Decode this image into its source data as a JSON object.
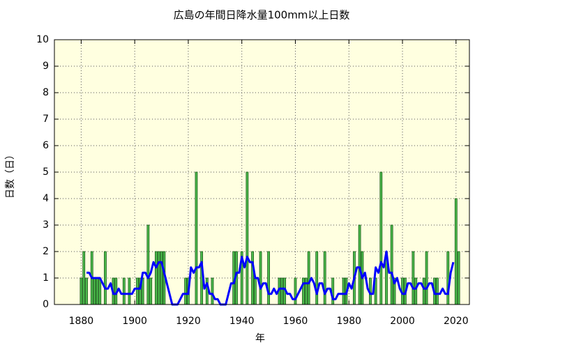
{
  "chart_data": {
    "type": "bar_line",
    "title": "広島の年間日降水量100mm以上日数",
    "xlabel": "年",
    "ylabel": "日数（日）",
    "x": [
      1880,
      1881,
      1882,
      1883,
      1884,
      1885,
      1886,
      1887,
      1888,
      1889,
      1890,
      1891,
      1892,
      1893,
      1894,
      1895,
      1896,
      1897,
      1898,
      1899,
      1900,
      1901,
      1902,
      1903,
      1904,
      1905,
      1906,
      1907,
      1908,
      1909,
      1910,
      1911,
      1912,
      1913,
      1914,
      1915,
      1916,
      1917,
      1918,
      1919,
      1920,
      1921,
      1922,
      1923,
      1924,
      1925,
      1926,
      1927,
      1928,
      1929,
      1930,
      1931,
      1932,
      1933,
      1934,
      1935,
      1936,
      1937,
      1938,
      1939,
      1940,
      1941,
      1942,
      1943,
      1944,
      1945,
      1946,
      1947,
      1948,
      1949,
      1950,
      1951,
      1952,
      1953,
      1954,
      1955,
      1956,
      1957,
      1958,
      1959,
      1960,
      1961,
      1962,
      1963,
      1964,
      1965,
      1966,
      1967,
      1968,
      1969,
      1970,
      1971,
      1972,
      1973,
      1974,
      1975,
      1976,
      1977,
      1978,
      1979,
      1980,
      1981,
      1982,
      1983,
      1984,
      1985,
      1986,
      1987,
      1988,
      1989,
      1990,
      1991,
      1992,
      1993,
      1994,
      1995,
      1996,
      1997,
      1998,
      1999,
      2000,
      2001,
      2002,
      2003,
      2004,
      2005,
      2006,
      2007,
      2008,
      2009,
      2010,
      2011,
      2012,
      2013,
      2014,
      2015,
      2016,
      2017,
      2018,
      2019,
      2020,
      2021
    ],
    "series": [
      {
        "color": "#4cbb4c",
        "values": [
          1,
          2,
          1,
          0,
          2,
          1,
          1,
          1,
          0,
          2,
          0,
          0,
          1,
          1,
          0,
          0,
          1,
          0,
          1,
          0,
          0,
          1,
          1,
          1,
          0,
          3,
          1,
          0,
          2,
          2,
          2,
          2,
          0,
          0,
          0,
          0,
          0,
          0,
          0,
          1,
          1,
          0,
          0,
          5,
          0,
          2,
          0,
          1,
          0,
          1,
          0,
          0,
          0,
          0,
          0,
          0,
          0,
          2,
          2,
          0,
          2,
          0,
          5,
          0,
          2,
          1,
          0,
          2,
          0,
          0,
          2,
          0,
          0,
          0,
          1,
          1,
          1,
          0,
          0,
          0,
          1,
          0,
          0,
          1,
          1,
          2,
          0,
          0,
          2,
          0,
          0,
          2,
          0,
          0,
          1,
          0,
          0,
          0,
          1,
          1,
          0,
          0,
          2,
          0,
          3,
          2,
          0,
          0,
          1,
          0,
          1,
          0,
          5,
          0,
          2,
          0,
          3,
          1,
          0,
          0,
          1,
          1,
          0,
          0,
          2,
          1,
          0,
          0,
          1,
          2,
          0,
          0,
          1,
          1,
          0,
          0,
          0,
          2,
          0,
          0,
          4,
          2
        ]
      },
      {
        "color": "#0000ff",
        "values": [
          null,
          null,
          1.2,
          1.2,
          1.0,
          1.0,
          1.0,
          1.0,
          0.8,
          0.6,
          0.6,
          0.8,
          0.4,
          0.4,
          0.6,
          0.4,
          0.4,
          0.4,
          0.4,
          0.4,
          0.6,
          0.6,
          0.6,
          1.2,
          1.2,
          1.0,
          1.2,
          1.6,
          1.4,
          1.6,
          1.6,
          1.2,
          0.8,
          0.4,
          0,
          0,
          0,
          0.2,
          0.4,
          0.4,
          0.4,
          1.4,
          1.2,
          1.4,
          1.4,
          1.6,
          0.6,
          0.8,
          0.4,
          0.4,
          0.2,
          0.2,
          0,
          0,
          0,
          0.4,
          0.8,
          0.8,
          1.2,
          1.2,
          1.8,
          1.4,
          1.8,
          1.6,
          1.6,
          1.0,
          1.0,
          0.6,
          0.8,
          0.8,
          0.4,
          0.4,
          0.6,
          0.4,
          0.6,
          0.6,
          0.6,
          0.4,
          0.4,
          0.2,
          0.2,
          0.4,
          0.6,
          0.8,
          0.8,
          0.8,
          1.0,
          0.8,
          0.4,
          0.8,
          0.8,
          0.4,
          0.6,
          0.6,
          0.2,
          0.2,
          0.4,
          0.4,
          0.4,
          0.4,
          0.8,
          0.6,
          1.0,
          1.4,
          1.4,
          1.0,
          1.2,
          0.6,
          0.4,
          0.4,
          1.4,
          1.2,
          1.6,
          1.4,
          2.0,
          1.2,
          1.2,
          0.8,
          1.0,
          0.6,
          0.4,
          0.4,
          0.8,
          0.8,
          0.6,
          0.6,
          0.8,
          0.8,
          0.6,
          0.6,
          0.8,
          0.8,
          0.4,
          0.4,
          0.4,
          0.6,
          0.4,
          0.4,
          1.2,
          1.6,
          null,
          null
        ]
      }
    ],
    "xlim": [
      1870,
      2025
    ],
    "xticks": [
      1880,
      1900,
      1920,
      1940,
      1960,
      1980,
      2000,
      2020
    ],
    "ylim": [
      0,
      10
    ],
    "yticks": [
      0,
      1,
      2,
      3,
      4,
      5,
      6,
      7,
      8,
      9,
      10
    ],
    "grid": true,
    "background": "#ffffe0"
  }
}
